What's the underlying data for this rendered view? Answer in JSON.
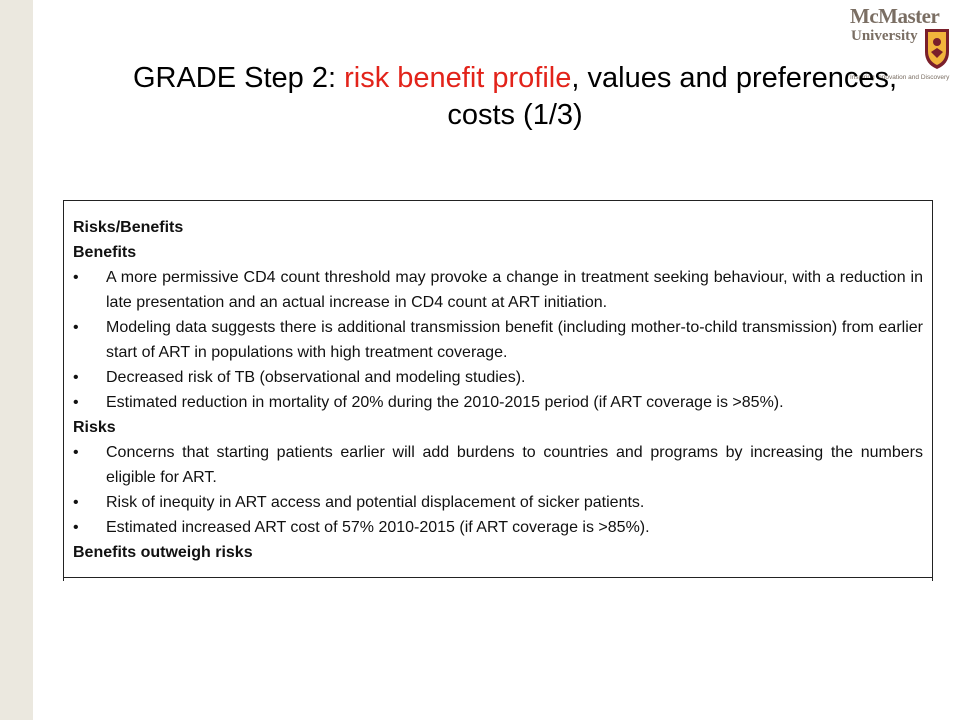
{
  "logo": {
    "name": "McMaster",
    "university": "University",
    "tagline": "Inspiring Innovation and Discovery"
  },
  "title": {
    "prefix": "GRADE Step 2: ",
    "highlight": "risk benefit profile",
    "suffix": ", values and preferences, costs (1/3)",
    "highlight_color": "#e2231a"
  },
  "box": {
    "heading": "Risks/Benefits",
    "benefits_heading": "Benefits",
    "benefits": [
      "A more permissive CD4 count threshold may provoke a change in treatment seeking behaviour, with a reduction in late presentation and an actual increase in CD4 count at ART initiation.",
      "Modeling data suggests there is additional transmission benefit (including mother-to-child transmission) from earlier start of ART in populations with high treatment coverage.",
      "Decreased risk of TB (observational and modeling studies).",
      "Estimated reduction in mortality of 20%  during the 2010-2015 period (if ART coverage is >85%)."
    ],
    "risks_heading": "Risks",
    "risks": [
      "Concerns that starting patients earlier will add burdens to countries and programs by increasing the numbers eligible for ART.",
      "Risk of inequity in ART access and potential displacement of sicker patients.",
      "Estimated increased ART cost of 57% 2010-2015 (if ART coverage is >85%)."
    ],
    "conclusion": "Benefits outweigh risks"
  },
  "bullet_glyph": "•"
}
